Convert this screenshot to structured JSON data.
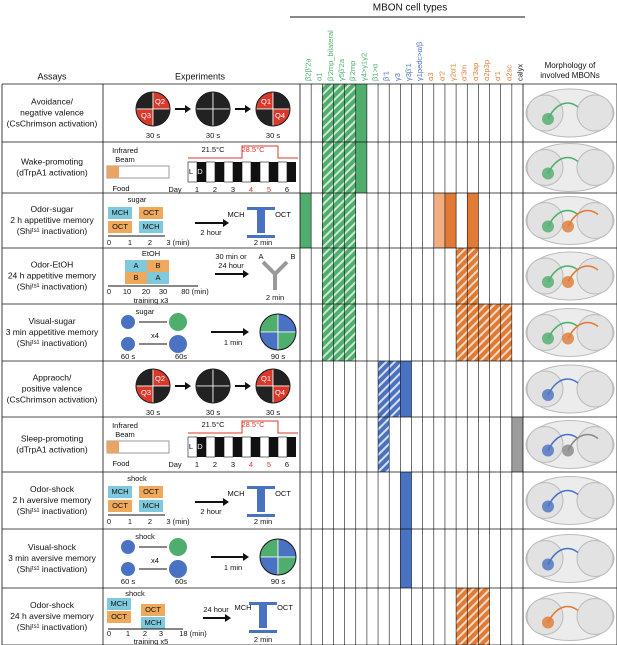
{
  "header": {
    "title": "MBON cell types",
    "assays": "Assays",
    "experiments": "Experiments",
    "morphology": [
      "Morphology of",
      "involved MBONs"
    ]
  },
  "columns": [
    {
      "label": "β2β'2a",
      "color": "#4fae6e"
    },
    {
      "label": "α1",
      "color": "#4fae6e"
    },
    {
      "label": "β'2mp_bilateral",
      "color": "#4fae6e"
    },
    {
      "label": "γ5β'2a",
      "color": "#4fae6e"
    },
    {
      "label": "β'2mp",
      "color": "#4fae6e"
    },
    {
      "label": "γ4>γ1γ2",
      "color": "#4fae6e"
    },
    {
      "label": "β1>α",
      "color": "#4fae6e"
    },
    {
      "label": "β'1",
      "color": "#4a72c2"
    },
    {
      "label": "γ3",
      "color": "#4a72c2"
    },
    {
      "label": "γ3β'1",
      "color": "#4a72c2"
    },
    {
      "label": "γ1pedc>α/β",
      "color": "#4a72c2"
    },
    {
      "label": "α3",
      "color": "#e07a35"
    },
    {
      "label": "α'2",
      "color": "#e07a35"
    },
    {
      "label": "γ2α'1",
      "color": "#e07a35"
    },
    {
      "label": "α'3m",
      "color": "#e07a35"
    },
    {
      "label": "α'3ap",
      "color": "#e07a35"
    },
    {
      "label": "α2p3p",
      "color": "#e07a35"
    },
    {
      "label": "α'1",
      "color": "#e07a35"
    },
    {
      "label": "α2sc",
      "color": "#e07a35"
    },
    {
      "label": "calyx",
      "color": "#222222"
    }
  ],
  "rows": [
    {
      "assay": [
        "Avoidance/",
        "negative valence",
        "(CsChrimson activation)"
      ],
      "experiment": [
        "Q2",
        "Q3",
        "30 s",
        "30 s",
        "Q1",
        "Q4",
        "30 s"
      ],
      "cells": [
        {
          "column": 2,
          "style": "hatched"
        },
        {
          "column": 3,
          "style": "hatched"
        },
        {
          "column": 4,
          "style": "hatched"
        },
        {
          "column": 5,
          "style": "solid"
        }
      ]
    },
    {
      "assay": [
        "Wake-promoting",
        "(dTrpA1 activation)"
      ],
      "experiment": [
        "Infrared",
        "Beam",
        "Food",
        "21.5°C",
        "28.5°C",
        "L",
        "D",
        "Day",
        "1",
        "2",
        "3",
        "4",
        "5",
        "6"
      ],
      "cells": [
        {
          "column": 2,
          "style": "hatched"
        },
        {
          "column": 3,
          "style": "hatched"
        },
        {
          "column": 4,
          "style": "hatched"
        },
        {
          "column": 5,
          "style": "solid"
        }
      ]
    },
    {
      "assay": [
        "Odor-sugar",
        "2 h appetitive memory",
        "(Shiᵗˢ¹ inactivation)"
      ],
      "experiment": [
        "sugar",
        "MCH",
        "OCT",
        "OCT",
        "MCH",
        "0",
        "1",
        "2",
        "3 (min)",
        "2 hour",
        "MCH",
        "OCT",
        "2 min"
      ],
      "cells": [
        {
          "column": 0,
          "style": "solid"
        },
        {
          "column": 2,
          "style": "hatched"
        },
        {
          "column": 3,
          "style": "hatched"
        },
        {
          "column": 4,
          "style": "hatched"
        },
        {
          "column": 12,
          "style": "light"
        },
        {
          "column": 13,
          "style": "solid"
        },
        {
          "column": 15,
          "style": "solid"
        }
      ]
    },
    {
      "assay": [
        "Odor-EtOH",
        "24 h appetitive memory",
        "(Shiᵗˢ¹ inactivation)"
      ],
      "experiment": [
        "EtOH",
        "A",
        "B",
        "B",
        "A",
        "0",
        "10",
        "20",
        "30",
        "80 (min)",
        "training x3",
        "30 min or",
        "24 hour",
        "A",
        "B",
        "2 min"
      ],
      "cells": [
        {
          "column": 2,
          "style": "hatched"
        },
        {
          "column": 3,
          "style": "hatched"
        },
        {
          "column": 4,
          "style": "hatched"
        },
        {
          "column": 14,
          "style": "hatched"
        },
        {
          "column": 15,
          "style": "hatched"
        }
      ]
    },
    {
      "assay": [
        "Visual-sugar",
        "3 min appetitive memory",
        "(Shiᵗˢ¹ inactivation)"
      ],
      "experiment": [
        "sugar",
        "60 s",
        "x4",
        "60s",
        "1 min",
        "90 s"
      ],
      "cells": [
        {
          "column": 2,
          "style": "hatched"
        },
        {
          "column": 3,
          "style": "hatched"
        },
        {
          "column": 4,
          "style": "hatched"
        },
        {
          "column": 14,
          "style": "hatched"
        },
        {
          "column": 15,
          "style": "hatched"
        },
        {
          "column": 16,
          "style": "hatched"
        },
        {
          "column": 17,
          "style": "hatched"
        },
        {
          "column": 18,
          "style": "hatched"
        }
      ]
    },
    {
      "assay": [
        "Appraoch/",
        "positive valence",
        "(CsChrimson activation)"
      ],
      "experiment": [
        "Q2",
        "Q3",
        "30 s",
        "30 s",
        "Q1",
        "Q4",
        "30 s"
      ],
      "cells": [
        {
          "column": 7,
          "style": "hatched"
        },
        {
          "column": 8,
          "style": "hatched"
        },
        {
          "column": 9,
          "style": "solid"
        }
      ]
    },
    {
      "assay": [
        "Sleep-promoting",
        "(dTrpA1 activation)"
      ],
      "experiment": [
        "Infrared",
        "Beam",
        "Food",
        "21.5°C",
        "28.5°C",
        "L",
        "D",
        "Day",
        "1",
        "2",
        "3",
        "4",
        "5",
        "6"
      ],
      "cells": [
        {
          "column": 7,
          "style": "hatched"
        },
        {
          "column": 19,
          "style": "gray"
        }
      ]
    },
    {
      "assay": [
        "Odor-shock",
        "2 h aversive memory",
        "(Shiᵗˢ¹ inactivation)"
      ],
      "experiment": [
        "shock",
        "MCH",
        "OCT",
        "OCT",
        "MCH",
        "0",
        "1",
        "2",
        "3 (min)",
        "2 hour",
        "MCH",
        "OCT",
        "2 min"
      ],
      "cells": [
        {
          "column": 9,
          "style": "solid"
        }
      ]
    },
    {
      "assay": [
        "Visual-shock",
        "3 min aversive memory",
        "(Shiᵗˢ¹ inactivation)"
      ],
      "experiment": [
        "shock",
        "60 s",
        "x4",
        "60s",
        "1 min",
        "90 s"
      ],
      "cells": [
        {
          "column": 9,
          "style": "solid"
        }
      ]
    },
    {
      "assay": [
        "Odor-shock",
        "24 h aversive memory",
        "(Shiᵗˢ¹ inactivation)"
      ],
      "experiment": [
        "shock",
        "MCH",
        "OCT",
        "OCT",
        "MCH",
        "0",
        "1",
        "2",
        "3",
        "18 (min)",
        "training x5",
        "24 hour",
        "MCH",
        "OCT",
        "2 min"
      ],
      "cells": [
        {
          "column": 14,
          "style": "hatched"
        },
        {
          "column": 15,
          "style": "hatched"
        },
        {
          "column": 16,
          "style": "hatched"
        }
      ]
    }
  ]
}
